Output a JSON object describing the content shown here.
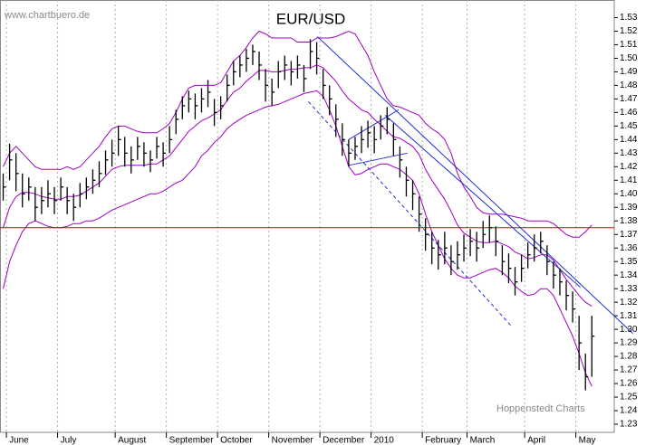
{
  "chart_data": {
    "type": "ohlc",
    "title": "EUR/USD",
    "source": "www.chartbuero.de",
    "credit": "Hoppenstedt Charts",
    "categories": [
      null,
      "June",
      null,
      null,
      null,
      null,
      null,
      null,
      null,
      "July",
      null,
      null,
      null,
      null,
      null,
      null,
      null,
      null,
      "August",
      null,
      null,
      null,
      null,
      null,
      null,
      null,
      "September",
      null,
      null,
      null,
      null,
      null,
      null,
      null,
      "October",
      null,
      null,
      null,
      null,
      null,
      null,
      null,
      "November",
      null,
      null,
      null,
      null,
      null,
      null,
      null,
      "December",
      null,
      null,
      null,
      null,
      null,
      null,
      null,
      "2010",
      null,
      null,
      null,
      null,
      null,
      null,
      null,
      "February",
      null,
      null,
      null,
      null,
      null,
      null,
      "March",
      null,
      null,
      null,
      null,
      null,
      null,
      null,
      null,
      "April",
      null,
      null,
      null,
      null,
      null,
      null,
      null,
      "May",
      null,
      null
    ],
    "xlim": [
      -0.5,
      95.5
    ],
    "color": "#000000",
    "high": [
      1.415,
      1.437,
      1.43,
      1.415,
      1.412,
      1.405,
      1.405,
      1.41,
      1.405,
      1.412,
      1.405,
      1.4,
      1.408,
      1.412,
      1.418,
      1.424,
      1.432,
      1.44,
      1.45,
      1.442,
      1.435,
      1.442,
      1.438,
      1.432,
      1.442,
      1.438,
      1.45,
      1.462,
      1.472,
      1.476,
      1.474,
      1.478,
      1.484,
      1.47,
      1.472,
      1.488,
      1.498,
      1.502,
      1.507,
      1.51,
      1.505,
      1.492,
      1.485,
      1.498,
      1.502,
      1.498,
      1.502,
      1.495,
      1.514,
      1.512,
      1.492,
      1.48,
      1.466,
      1.452,
      1.44,
      1.442,
      1.45,
      1.454,
      1.45,
      1.458,
      1.464,
      1.452,
      1.435,
      1.42,
      1.41,
      1.398,
      1.382,
      1.372,
      1.366,
      1.372,
      1.362,
      1.365,
      1.37,
      1.374,
      1.372,
      1.38,
      1.384,
      1.376,
      1.362,
      1.356,
      1.346,
      1.355,
      1.364,
      1.37,
      1.372,
      1.362,
      1.35,
      1.345,
      1.336,
      1.328,
      1.31,
      1.282,
      1.31
    ],
    "low": [
      1.395,
      1.41,
      1.402,
      1.39,
      1.395,
      1.38,
      1.385,
      1.39,
      1.385,
      1.395,
      1.385,
      1.38,
      1.39,
      1.396,
      1.4,
      1.405,
      1.414,
      1.42,
      1.428,
      1.42,
      1.415,
      1.425,
      1.42,
      1.416,
      1.426,
      1.42,
      1.43,
      1.444,
      1.455,
      1.46,
      1.455,
      1.46,
      1.464,
      1.45,
      1.455,
      1.468,
      1.48,
      1.486,
      1.49,
      1.495,
      1.484,
      1.468,
      1.465,
      1.478,
      1.484,
      1.48,
      1.485,
      1.475,
      1.492,
      1.488,
      1.47,
      1.458,
      1.442,
      1.428,
      1.42,
      1.425,
      1.43,
      1.434,
      1.43,
      1.44,
      1.444,
      1.428,
      1.412,
      1.398,
      1.388,
      1.372,
      1.358,
      1.348,
      1.344,
      1.348,
      1.34,
      1.344,
      1.35,
      1.354,
      1.35,
      1.36,
      1.364,
      1.354,
      1.34,
      1.334,
      1.325,
      1.335,
      1.345,
      1.35,
      1.356,
      1.34,
      1.33,
      1.325,
      1.314,
      1.305,
      1.27,
      1.255,
      1.265
    ],
    "close": [
      1.405,
      1.425,
      1.415,
      1.4,
      1.405,
      1.39,
      1.395,
      1.4,
      1.395,
      1.405,
      1.395,
      1.39,
      1.4,
      1.405,
      1.41,
      1.415,
      1.425,
      1.43,
      1.44,
      1.43,
      1.425,
      1.435,
      1.43,
      1.425,
      1.435,
      1.43,
      1.44,
      1.455,
      1.465,
      1.47,
      1.465,
      1.47,
      1.475,
      1.46,
      1.465,
      1.48,
      1.49,
      1.495,
      1.5,
      1.505,
      1.495,
      1.48,
      1.475,
      1.49,
      1.495,
      1.49,
      1.495,
      1.485,
      1.505,
      1.5,
      1.48,
      1.47,
      1.455,
      1.44,
      1.43,
      1.435,
      1.44,
      1.445,
      1.44,
      1.45,
      1.455,
      1.44,
      1.425,
      1.41,
      1.4,
      1.385,
      1.37,
      1.36,
      1.355,
      1.36,
      1.35,
      1.355,
      1.36,
      1.365,
      1.36,
      1.37,
      1.375,
      1.365,
      1.35,
      1.345,
      1.335,
      1.345,
      1.355,
      1.36,
      1.365,
      1.35,
      1.34,
      1.335,
      1.325,
      1.315,
      1.29,
      1.265,
      1.295
    ],
    "bands": {
      "color": "#a000c0",
      "upper": [
        1.42,
        1.43,
        1.435,
        1.43,
        1.425,
        1.42,
        1.418,
        1.418,
        1.418,
        1.418,
        1.42,
        1.418,
        1.42,
        1.425,
        1.43,
        1.435,
        1.442,
        1.448,
        1.45,
        1.45,
        1.448,
        1.446,
        1.445,
        1.445,
        1.445,
        1.448,
        1.452,
        1.46,
        1.47,
        1.478,
        1.48,
        1.48,
        1.48,
        1.48,
        1.482,
        1.49,
        1.498,
        1.502,
        1.508,
        1.515,
        1.52,
        1.518,
        1.515,
        1.515,
        1.515,
        1.515,
        1.512,
        1.512,
        1.512,
        1.515,
        1.515,
        1.515,
        1.516,
        1.518,
        1.52,
        1.518,
        1.51,
        1.502,
        1.49,
        1.48,
        1.47,
        1.465,
        1.464,
        1.462,
        1.46,
        1.458,
        1.452,
        1.448,
        1.445,
        1.44,
        1.43,
        1.415,
        1.405,
        1.398,
        1.39,
        1.386,
        1.385,
        1.385,
        1.385,
        1.384,
        1.383,
        1.382,
        1.38,
        1.38,
        1.38,
        1.38,
        1.378,
        1.374,
        1.37,
        1.368,
        1.368,
        1.372,
        1.377
      ],
      "middle": [
        1.375,
        1.39,
        1.398,
        1.401,
        1.401,
        1.4,
        1.398,
        1.397,
        1.396,
        1.396,
        1.398,
        1.398,
        1.399,
        1.402,
        1.405,
        1.408,
        1.413,
        1.418,
        1.42,
        1.421,
        1.421,
        1.421,
        1.421,
        1.422,
        1.422,
        1.425,
        1.428,
        1.434,
        1.44,
        1.446,
        1.45,
        1.454,
        1.456,
        1.459,
        1.462,
        1.469,
        1.475,
        1.478,
        1.483,
        1.487,
        1.491,
        1.491,
        1.49,
        1.49,
        1.491,
        1.492,
        1.492,
        1.493,
        1.493,
        1.495,
        1.493,
        1.488,
        1.483,
        1.476,
        1.47,
        1.466,
        1.462,
        1.46,
        1.455,
        1.451,
        1.446,
        1.442,
        1.441,
        1.438,
        1.435,
        1.429,
        1.418,
        1.41,
        1.403,
        1.396,
        1.387,
        1.377,
        1.371,
        1.368,
        1.365,
        1.364,
        1.364,
        1.365,
        1.363,
        1.361,
        1.357,
        1.355,
        1.352,
        1.353,
        1.355,
        1.355,
        1.351,
        1.344,
        1.337,
        1.331,
        1.325,
        1.32,
        1.317
      ],
      "lower": [
        1.33,
        1.35,
        1.362,
        1.372,
        1.378,
        1.38,
        1.378,
        1.376,
        1.375,
        1.375,
        1.376,
        1.378,
        1.378,
        1.38,
        1.38,
        1.382,
        1.385,
        1.388,
        1.39,
        1.392,
        1.394,
        1.396,
        1.398,
        1.4,
        1.4,
        1.402,
        1.405,
        1.408,
        1.41,
        1.415,
        1.42,
        1.428,
        1.432,
        1.438,
        1.442,
        1.448,
        1.452,
        1.455,
        1.458,
        1.46,
        1.462,
        1.464,
        1.465,
        1.466,
        1.468,
        1.47,
        1.472,
        1.474,
        1.475,
        1.476,
        1.472,
        1.462,
        1.45,
        1.435,
        1.42,
        1.414,
        1.415,
        1.418,
        1.42,
        1.422,
        1.422,
        1.42,
        1.418,
        1.414,
        1.41,
        1.4,
        1.385,
        1.372,
        1.362,
        1.352,
        1.345,
        1.34,
        1.338,
        1.338,
        1.34,
        1.342,
        1.344,
        1.345,
        1.342,
        1.338,
        1.332,
        1.328,
        1.325,
        1.326,
        1.33,
        1.33,
        1.325,
        1.315,
        1.305,
        1.295,
        1.282,
        1.268,
        1.258
      ]
    },
    "hline": {
      "value": 1.375,
      "color": "#e00000"
    },
    "trendlines": [
      {
        "x": [
          49.1,
          98.4
        ],
        "y": [
          1.516,
          1.297
        ],
        "color": "#1f2fd0",
        "dashed": false
      },
      {
        "x": [
          59.7,
          90.2
        ],
        "y": [
          1.458,
          1.331
        ],
        "color": "#1f2fd0",
        "dashed": false
      },
      {
        "x": [
          47.7,
          79.5
        ],
        "y": [
          1.468,
          1.302
        ],
        "color": "#1f2fd0",
        "dashed": true
      },
      {
        "x": [
          54.0,
          61.8
        ],
        "y": [
          1.44,
          1.462
        ],
        "color": "#1f2fd0",
        "dashed": false
      },
      {
        "x": [
          54.0,
          63.2
        ],
        "y": [
          1.421,
          1.43
        ],
        "color": "#1f2fd0",
        "dashed": false
      }
    ],
    "ylim": [
      1.224,
      1.543
    ],
    "yticks": [
      1.23,
      1.24,
      1.25,
      1.26,
      1.27,
      1.28,
      1.29,
      {
        "value": 1.3,
        "label": "1.30"
      },
      1.31,
      1.32,
      1.33,
      1.34,
      1.35,
      1.36,
      1.37,
      1.38,
      1.39,
      {
        "value": 1.4,
        "label": "1.40"
      },
      1.41,
      1.42,
      1.43,
      1.44,
      1.45,
      1.46,
      1.47,
      1.48,
      1.49,
      {
        "value": 1.5,
        "label": "1.50"
      },
      1.51,
      1.52,
      1.53
    ],
    "y_axis_side": "right",
    "grid": true
  }
}
